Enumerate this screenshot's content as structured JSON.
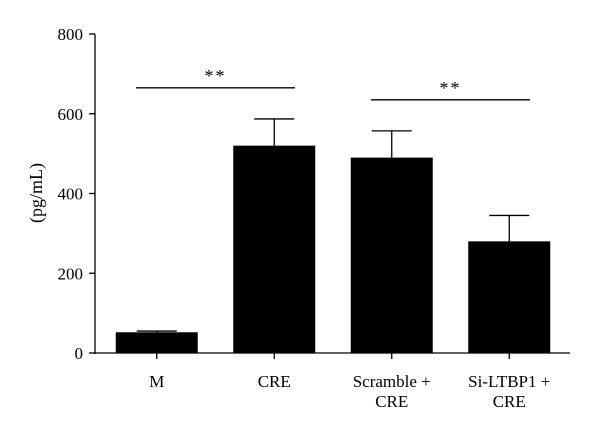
{
  "chart_data": {
    "type": "bar",
    "title": "",
    "xlabel": "",
    "ylabel": "(pg/mL)",
    "ylim": [
      0,
      800
    ],
    "yticks": [
      0,
      200,
      400,
      600,
      800
    ],
    "grid": false,
    "legend": "none",
    "bar_color": "#000000",
    "categories": [
      [
        "M"
      ],
      [
        "CRE"
      ],
      [
        "Scramble +",
        "CRE"
      ],
      [
        "Si-LTBP1 +",
        "CRE"
      ]
    ],
    "values": [
      52,
      520,
      490,
      280
    ],
    "error_upper": [
      55,
      587,
      557,
      345
    ],
    "annotations": [
      {
        "from": 0,
        "to": 1,
        "y": 665,
        "label": "**"
      },
      {
        "from": 2,
        "to": 3,
        "y": 635,
        "label": "**"
      }
    ]
  }
}
